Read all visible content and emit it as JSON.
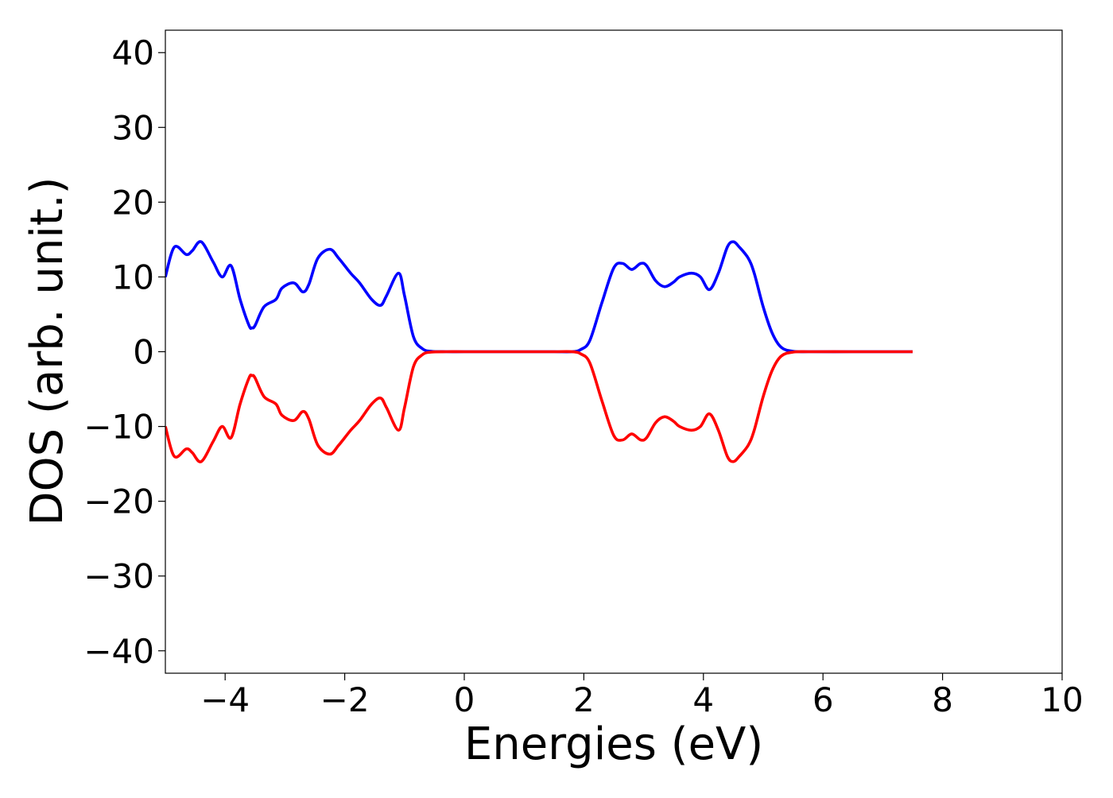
{
  "chart_data": {
    "type": "line",
    "title": "",
    "xlabel": "Energies (eV)",
    "ylabel": "DOS (arb. unit.)",
    "xlim": [
      -5,
      10
    ],
    "ylim": [
      -43,
      43
    ],
    "xticks": [
      -4,
      -2,
      0,
      2,
      4,
      6,
      8,
      10
    ],
    "xtick_labels": [
      "−4",
      "−2",
      "0",
      "2",
      "4",
      "6",
      "8",
      "10"
    ],
    "yticks": [
      40,
      30,
      20,
      10,
      0,
      -10,
      -20,
      -30,
      -40
    ],
    "ytick_labels": [
      "40",
      "30",
      "20",
      "10",
      "0",
      "−10",
      "−20",
      "−30",
      "−40"
    ],
    "grid": false,
    "legend": "none",
    "series": [
      {
        "color": "#0000ff",
        "x": [
          -5.0,
          -4.85,
          -4.65,
          -4.55,
          -4.4,
          -4.2,
          -4.05,
          -3.9,
          -3.75,
          -3.6,
          -3.55,
          -3.5,
          -3.35,
          -3.15,
          -3.05,
          -2.85,
          -2.7,
          -2.6,
          -2.45,
          -2.25,
          -2.1,
          -1.9,
          -1.75,
          -1.55,
          -1.4,
          -1.3,
          -1.1,
          -1.0,
          -0.85,
          -0.7,
          -0.55,
          -0.3,
          0.0,
          0.5,
          1.0,
          1.5,
          1.8,
          1.95,
          2.1,
          2.3,
          2.5,
          2.65,
          2.8,
          2.95,
          3.05,
          3.2,
          3.35,
          3.5,
          3.6,
          3.8,
          3.95,
          4.1,
          4.25,
          4.4,
          4.5,
          4.6,
          4.75,
          4.85,
          5.0,
          5.15,
          5.3,
          5.5,
          5.8,
          6.5,
          7.0,
          7.5
        ],
        "y": [
          10.0,
          14.0,
          13.0,
          13.5,
          14.7,
          12.0,
          10.0,
          11.5,
          7.0,
          3.5,
          3.2,
          3.5,
          6.0,
          7.0,
          8.5,
          9.2,
          8.0,
          9.0,
          12.5,
          13.7,
          12.5,
          10.5,
          9.2,
          7.0,
          6.2,
          7.5,
          10.5,
          7.5,
          2.0,
          0.4,
          0.05,
          0.0,
          0.0,
          0.0,
          0.0,
          0.0,
          0.0,
          0.3,
          1.5,
          6.5,
          11.2,
          11.8,
          11.0,
          11.8,
          11.5,
          9.5,
          8.7,
          9.3,
          10.0,
          10.5,
          10.0,
          8.3,
          10.5,
          14.0,
          14.7,
          14.0,
          12.5,
          10.5,
          6.0,
          2.5,
          0.6,
          0.05,
          0.0,
          0.0,
          0.0,
          0.0
        ]
      },
      {
        "color": "#ff0000",
        "x": [
          -5.0,
          -4.85,
          -4.65,
          -4.55,
          -4.4,
          -4.2,
          -4.05,
          -3.9,
          -3.75,
          -3.6,
          -3.55,
          -3.5,
          -3.35,
          -3.15,
          -3.05,
          -2.85,
          -2.7,
          -2.6,
          -2.45,
          -2.25,
          -2.1,
          -1.9,
          -1.75,
          -1.55,
          -1.4,
          -1.3,
          -1.1,
          -1.0,
          -0.85,
          -0.7,
          -0.55,
          -0.3,
          0.0,
          0.5,
          1.0,
          1.5,
          1.8,
          1.95,
          2.1,
          2.3,
          2.5,
          2.65,
          2.8,
          2.95,
          3.05,
          3.2,
          3.35,
          3.5,
          3.6,
          3.8,
          3.95,
          4.1,
          4.25,
          4.4,
          4.5,
          4.6,
          4.75,
          4.85,
          5.0,
          5.15,
          5.3,
          5.5,
          5.8,
          6.5,
          7.0,
          7.5
        ],
        "y": [
          -10.0,
          -14.0,
          -13.0,
          -13.5,
          -14.7,
          -12.0,
          -10.0,
          -11.5,
          -7.0,
          -3.5,
          -3.2,
          -3.5,
          -6.0,
          -7.0,
          -8.5,
          -9.2,
          -8.0,
          -9.0,
          -12.5,
          -13.7,
          -12.5,
          -10.5,
          -9.2,
          -7.0,
          -6.2,
          -7.5,
          -10.5,
          -7.5,
          -2.0,
          -0.4,
          -0.05,
          0.0,
          0.0,
          0.0,
          0.0,
          0.0,
          0.0,
          -0.3,
          -1.5,
          -6.5,
          -11.2,
          -11.8,
          -11.0,
          -11.8,
          -11.5,
          -9.5,
          -8.7,
          -9.3,
          -10.0,
          -10.5,
          -10.0,
          -8.3,
          -10.5,
          -14.0,
          -14.7,
          -14.0,
          -12.5,
          -10.5,
          -6.0,
          -2.5,
          -0.6,
          -0.05,
          0.0,
          0.0,
          0.0,
          0.0
        ]
      }
    ]
  }
}
